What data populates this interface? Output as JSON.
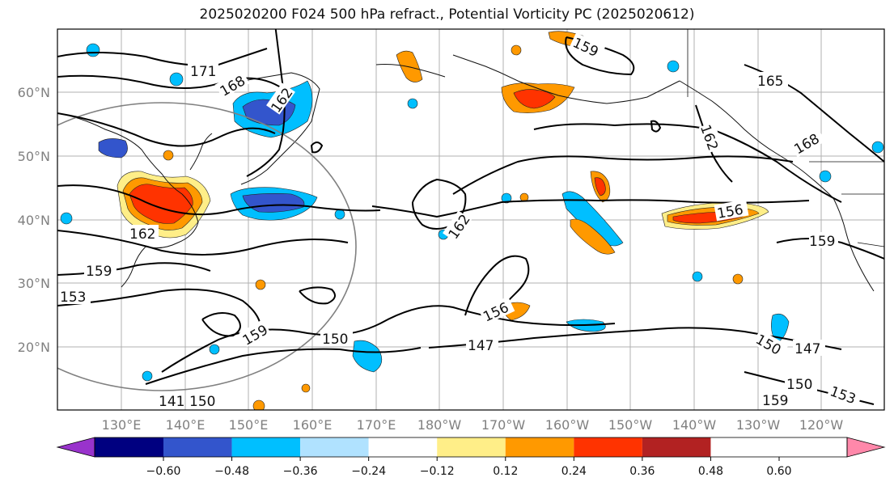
{
  "title": "2025020200 F024 500 hPa refract., Potential Vorticity PC (2025020612)",
  "lat_labels": [
    "60°N",
    "50°N",
    "40°N",
    "30°N",
    "20°N"
  ],
  "lon_labels": [
    "130°E",
    "140°E",
    "150°E",
    "160°E",
    "170°E",
    "180°W",
    "170°W",
    "160°W",
    "150°W",
    "140°W",
    "130°W",
    "120°W"
  ],
  "colorbar": {
    "ticks": [
      "−0.60",
      "−0.48",
      "−0.36",
      "−0.24",
      "−0.12",
      "0.12",
      "0.24",
      "0.36",
      "0.48",
      "0.60"
    ],
    "colors": [
      "#9933cc",
      "#000080",
      "#3355cc",
      "#00bfff",
      "#b0e2ff",
      "#ffffff",
      "#ffee88",
      "#ff9900",
      "#ff3300",
      "#b22222",
      "#ff88aa"
    ]
  },
  "contour_labels": [
    "171",
    "168",
    "162",
    "162",
    "159",
    "153",
    "159",
    "150",
    "141",
    "150",
    "156",
    "147",
    "162",
    "159",
    "165",
    "162",
    "168",
    "156",
    "159",
    "150",
    "147",
    "150",
    "159",
    "153"
  ]
}
